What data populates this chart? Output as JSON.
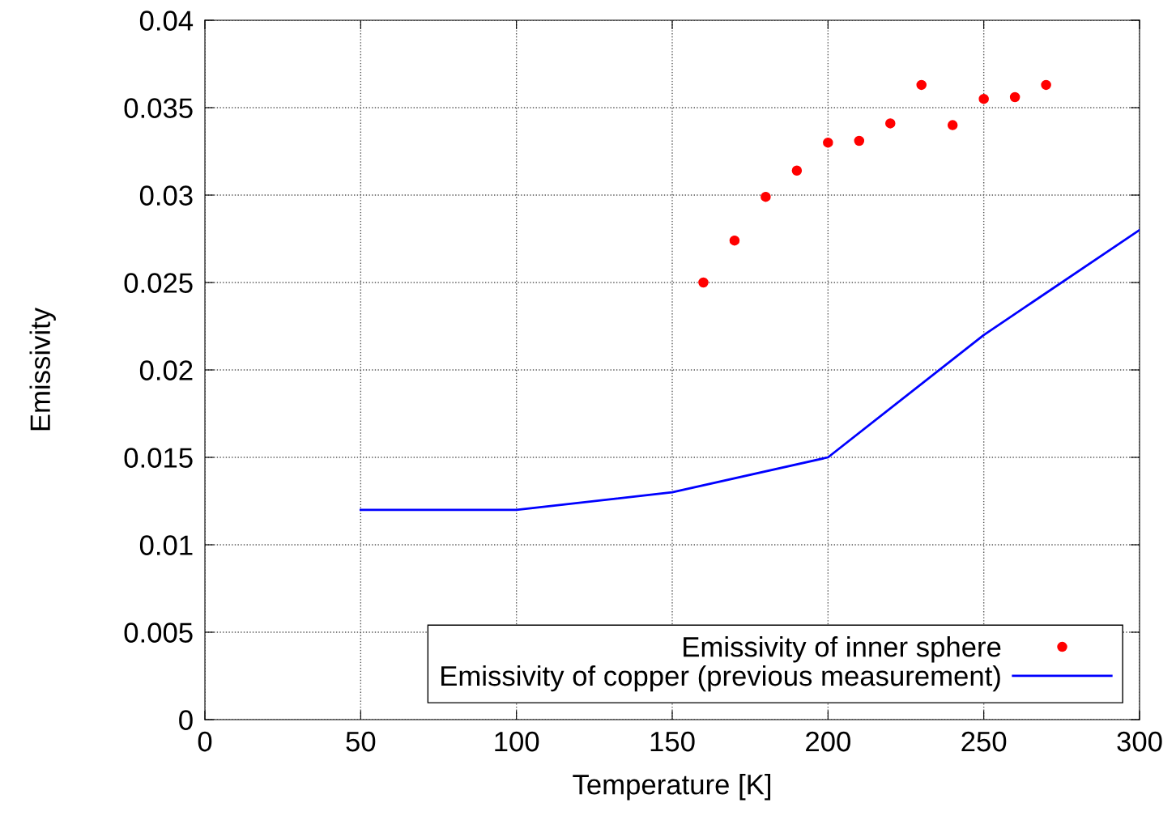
{
  "chart_data": {
    "type": "scatter",
    "xlabel": "Temperature [K]",
    "ylabel": "Emissivity",
    "xlim": [
      0,
      300
    ],
    "xticks": [
      0,
      50,
      100,
      150,
      200,
      250,
      300
    ],
    "ylim": [
      0,
      0.04
    ],
    "yticks": [
      0,
      0.005,
      0.01,
      0.015,
      0.02,
      0.025,
      0.03,
      0.035,
      0.04
    ],
    "grid": true,
    "legend": "bottom right",
    "series": [
      {
        "name": "Emissivity of inner sphere",
        "color": "#ff0000",
        "marker": "circle",
        "x": [
          160,
          170,
          180,
          190,
          200,
          210,
          220,
          230,
          240,
          250,
          260,
          270
        ],
        "values": [
          0.025,
          0.0274,
          0.0299,
          0.0314,
          0.033,
          0.0331,
          0.0341,
          0.0363,
          0.034,
          0.0355,
          0.0356,
          0.0363
        ]
      },
      {
        "name": "Emissivity of copper (previous measurement)",
        "type": "line",
        "color": "#0000ff",
        "line_style": "solid",
        "x": [
          50,
          100,
          150,
          200,
          250,
          300
        ],
        "values": [
          0.012,
          0.012,
          0.013,
          0.015,
          0.022,
          0.028
        ]
      }
    ]
  }
}
